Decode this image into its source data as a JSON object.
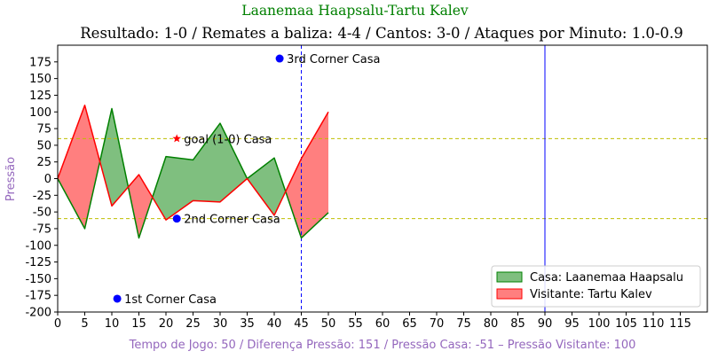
{
  "chart_data": {
    "type": "area",
    "suptitle": "Laanemaa Haapsalu-Tartu Kalev",
    "title": "Resultado: 1-0 / Remates a baliza: 4-4 / Cantos: 3-0 / Ataques por Minuto: 1.0-0.9",
    "xlabel": "Tempo de Jogo: 50 / Diferença Pressão: 151 / Pressão Casa: -51 – Pressão Visitante: 100",
    "ylabel": "Pressão",
    "xlim": [
      0,
      120
    ],
    "ylim": [
      -200,
      200
    ],
    "xticks": [
      0,
      5,
      10,
      15,
      20,
      25,
      30,
      35,
      40,
      45,
      50,
      55,
      60,
      65,
      70,
      75,
      80,
      85,
      90,
      95,
      100,
      105,
      110,
      115
    ],
    "yticks": [
      -200,
      -175,
      -150,
      -125,
      -100,
      -75,
      -50,
      -25,
      0,
      25,
      50,
      75,
      100,
      125,
      150,
      175
    ],
    "x": [
      0,
      5,
      10,
      15,
      20,
      25,
      30,
      35,
      40,
      45,
      50
    ],
    "series": [
      {
        "name": "Casa: Laanemaa Haapsalu",
        "values": [
          0,
          -75,
          105,
          -89,
          33,
          28,
          83,
          0,
          31,
          -89,
          -51
        ],
        "color": "#008000",
        "fill": "#7fbf7f"
      },
      {
        "name": "Visitante: Tartu Kalev",
        "values": [
          0,
          110,
          -41,
          6,
          -62,
          -33,
          -35,
          0,
          -55,
          30,
          100
        ],
        "color": "#ff0000",
        "fill": "#ff7f7f"
      }
    ],
    "hlines": [
      {
        "y": 60,
        "color": "#bfbf00",
        "style": "dashed"
      },
      {
        "y": -60,
        "color": "#bfbf00",
        "style": "dashed"
      }
    ],
    "vlines": [
      {
        "x": 45,
        "color": "#0000ff",
        "style": "dashed"
      },
      {
        "x": 90,
        "color": "#0000ff",
        "style": "solid"
      }
    ],
    "annotations": [
      {
        "x": 22,
        "y": 60,
        "marker": "star",
        "color": "#ff0000",
        "text": "goal (1-0) Casa"
      },
      {
        "x": 22,
        "y": -60,
        "marker": "dot",
        "color": "#0000ff",
        "text": "2nd Corner Casa"
      },
      {
        "x": 41,
        "y": 180,
        "marker": "dot",
        "color": "#0000ff",
        "text": "3rd Corner Casa"
      },
      {
        "x": 11,
        "y": -180,
        "marker": "dot",
        "color": "#0000ff",
        "text": "1st Corner Casa"
      }
    ],
    "legend": {
      "location": "lower-right"
    }
  }
}
